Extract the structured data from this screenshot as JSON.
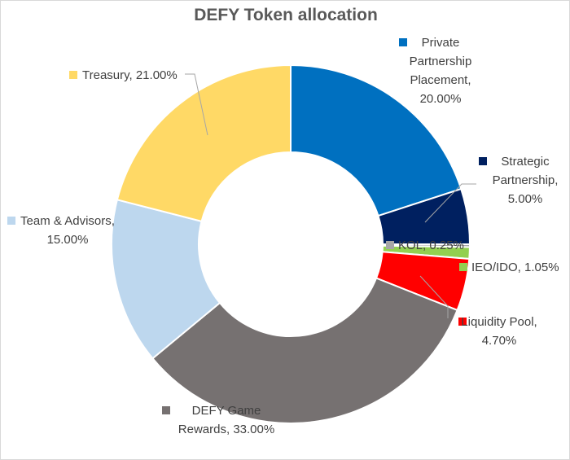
{
  "chart_data": {
    "type": "pie",
    "donut": true,
    "title": "DEFY Token allocation",
    "legend": "none",
    "slices": [
      {
        "name": "Private Partnership Placement",
        "value": 20.0,
        "label": [
          "Private",
          "Partnership",
          "Placement,",
          "20.00%"
        ],
        "color": "#0070C0"
      },
      {
        "name": "Strategic Partnership",
        "value": 5.0,
        "label": [
          "Strategic",
          "Partnership,",
          "5.00%"
        ],
        "color": "#002060"
      },
      {
        "name": "KOL",
        "value": 0.25,
        "label": [
          "KOL, 0.25%"
        ],
        "color": "#A6A6A6"
      },
      {
        "name": "IEO/IDO",
        "value": 1.05,
        "label": [
          "IEO/IDO, 1.05%"
        ],
        "color": "#92D050"
      },
      {
        "name": "Liquidity Pool",
        "value": 4.7,
        "label": [
          "Liquidity Pool,",
          "4.70%"
        ],
        "color": "#FF0000"
      },
      {
        "name": "DEFY Game Rewards",
        "value": 33.0,
        "label": [
          "DEFY Game",
          "Rewards, 33.00%"
        ],
        "color": "#767171"
      },
      {
        "name": "Team & Advisors",
        "value": 15.0,
        "label": [
          "Team & Advisors,",
          "15.00%"
        ],
        "color": "#BDD7EE"
      },
      {
        "name": "Treasury",
        "value": 21.0,
        "label": [
          "Treasury, 21.00%"
        ],
        "color": "#FFD966"
      }
    ]
  }
}
